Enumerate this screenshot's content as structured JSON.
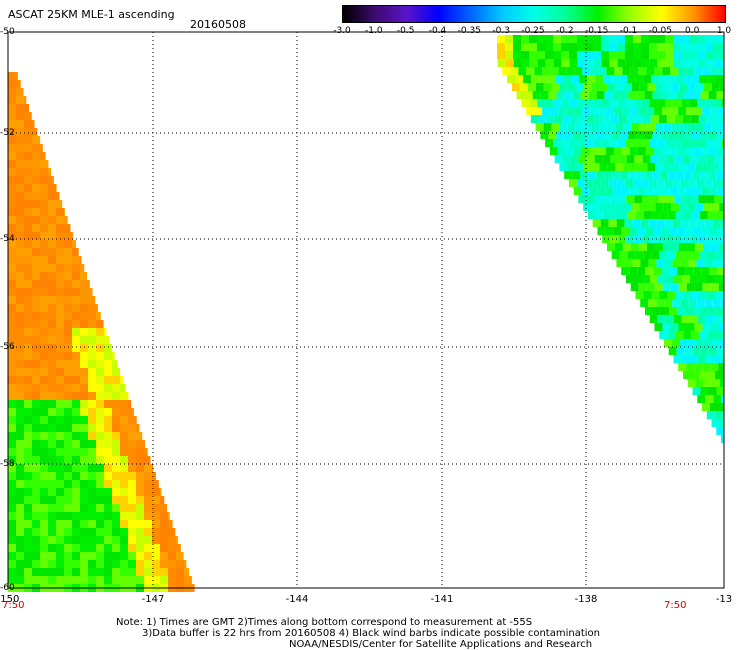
{
  "header": {
    "title": "ASCAT 25KM MLE-1 ascending",
    "date": "20160508"
  },
  "colorbar": {
    "labels": [
      "-3.0",
      "-1.0",
      "-0.5",
      "-0.4",
      "-0.35",
      "-0.3",
      "-0.25",
      "-0.2",
      "-0.15",
      "-0.1",
      "-0.05",
      "0.0",
      "1.0"
    ],
    "colors": [
      "#000000",
      "#3c0a6e",
      "#5a14c8",
      "#0000ff",
      "#0064ff",
      "#00c8ff",
      "#00ffe6",
      "#00ff96",
      "#00f000",
      "#96ff00",
      "#ffff00",
      "#ff9600",
      "#ff0000"
    ]
  },
  "axes": {
    "y_labels": [
      "-50",
      "-52",
      "-54",
      "-56",
      "-58",
      "-60"
    ],
    "x_labels": [
      "-150",
      "-147",
      "-144",
      "-141",
      "-138",
      "-13"
    ],
    "time_left": "7:50",
    "time_right": "7:50"
  },
  "notes": {
    "line1": "Note: 1) Times are GMT 2)Times along bottom correspond to measurement at -55S",
    "line2": "3)Data buffer is 22 hrs from 20160508 4) Black wind barbs indicate possible contamination",
    "line3": "NOAA/NESDIS/Center for Satellite Applications and Research"
  }
}
